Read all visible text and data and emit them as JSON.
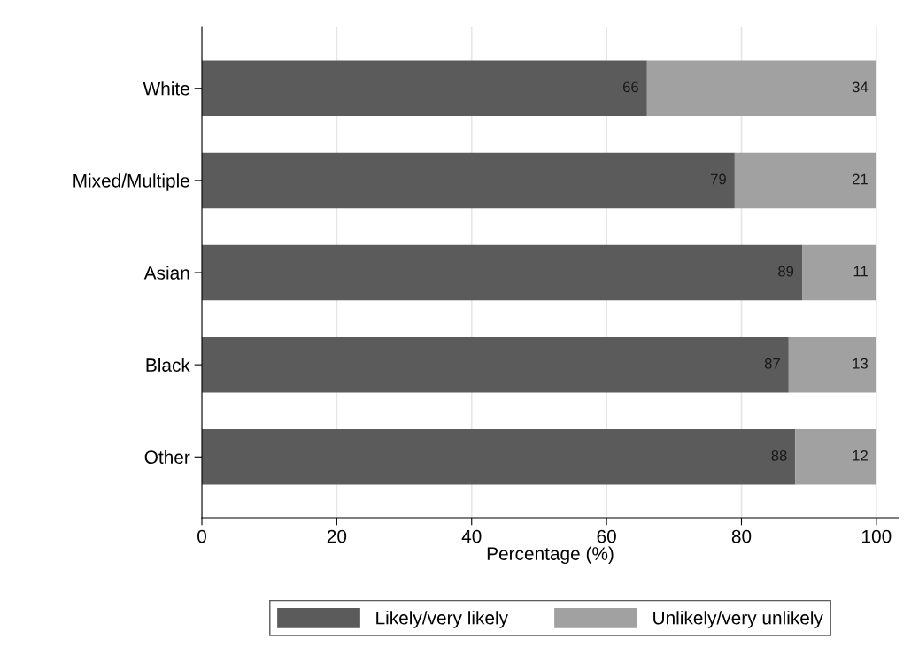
{
  "chart_data": {
    "type": "bar",
    "orientation": "horizontal",
    "stacked": true,
    "xlabel": "Percentage (%)",
    "categories": [
      "White",
      "Mixed/Multiple",
      "Asian",
      "Black",
      "Other"
    ],
    "series": [
      {
        "name": "Likely/very likely",
        "color": "#5b5b5b",
        "values": [
          66,
          79,
          89,
          87,
          88
        ]
      },
      {
        "name": "Unlikely/very unlikely",
        "color": "#a1a1a1",
        "values": [
          34,
          21,
          11,
          13,
          12
        ]
      }
    ],
    "xlim": [
      0,
      103.3
    ],
    "xticks": [
      0,
      20,
      40,
      60,
      80,
      100
    ],
    "grid": "x",
    "legend": "bottom",
    "data_labels": true
  }
}
